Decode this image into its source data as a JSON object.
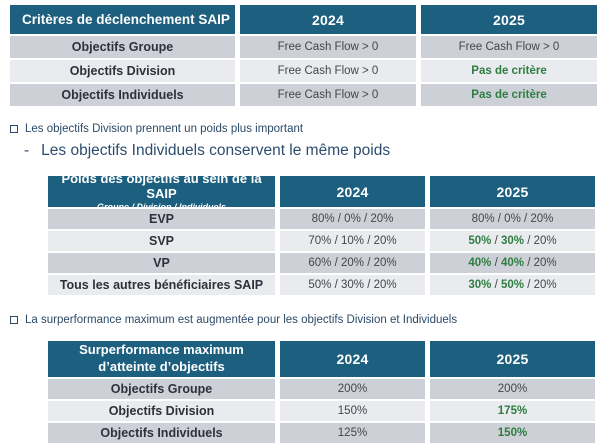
{
  "colors": {
    "header_bg": "#1d5f7e",
    "row_dark": "#cdd1d7",
    "row_light": "#e9ebee",
    "highlight_green": "#2e7d41",
    "bullet_navy": "#2c4a68",
    "text_dark": "#45454d"
  },
  "bullets": {
    "items": [
      {
        "marker": "square",
        "text": "Les objectifs Division prennent un poids plus important"
      },
      {
        "marker": "-",
        "text": "Les objectifs Individuels conservent le même poids"
      },
      {
        "marker": "square",
        "text": "La surperformance maximum est augmentée pour les objectifs Division et Individuels"
      }
    ]
  },
  "tables": {
    "triggers": {
      "title": "Critères de déclenchement SAIP",
      "subtitle": "",
      "years": [
        "2024",
        "2025"
      ],
      "rows": [
        {
          "label": "Objectifs Groupe",
          "cells": [
            [
              "Free Cash Flow > 0"
            ],
            [
              "Free Cash Flow > 0"
            ]
          ]
        },
        {
          "label": "Objectifs Division",
          "cells": [
            [
              "Free Cash Flow > 0"
            ],
            [
              {
                "t": "Pas de critère",
                "g": true
              }
            ]
          ]
        },
        {
          "label": "Objectifs Individuels",
          "cells": [
            [
              "Free Cash Flow > 0"
            ],
            [
              {
                "t": "Pas de critère",
                "g": true
              }
            ]
          ]
        }
      ]
    },
    "weights": {
      "title": "Poids des objectifs au sein de la SAIP",
      "subtitle": "Groupe / Division / Individuels",
      "years": [
        "2024",
        "2025"
      ],
      "rows": [
        {
          "label": "EVP",
          "cells": [
            [
              "80% / 0% / 20%"
            ],
            [
              "80% / 0% / 20%"
            ]
          ]
        },
        {
          "label": "SVP",
          "cells": [
            [
              "70% / 10% / 20%"
            ],
            [
              {
                "t": "50%",
                "g": true
              },
              {
                "t": " / "
              },
              {
                "t": "30%",
                "g": true
              },
              {
                "t": " / 20%"
              }
            ]
          ]
        },
        {
          "label": "VP",
          "cells": [
            [
              "60% / 20% / 20%"
            ],
            [
              {
                "t": "40%",
                "g": true
              },
              {
                "t": " / "
              },
              {
                "t": "40%",
                "g": true
              },
              {
                "t": " / 20%"
              }
            ]
          ]
        },
        {
          "label": "Tous les autres bénéficiaires SAIP",
          "cells": [
            [
              "50% / 30% / 20%"
            ],
            [
              {
                "t": "30%",
                "g": true
              },
              {
                "t": " / "
              },
              {
                "t": "50%",
                "g": true
              },
              {
                "t": " / 20%"
              }
            ]
          ]
        }
      ]
    },
    "surperformance": {
      "title": "Surperformance maximum d’atteinte d’objectifs",
      "subtitle": "",
      "years": [
        "2024",
        "2025"
      ],
      "rows": [
        {
          "label": "Objectifs Groupe",
          "cells": [
            [
              "200%"
            ],
            [
              "200%"
            ]
          ]
        },
        {
          "label": "Objectifs Division",
          "cells": [
            [
              "150%"
            ],
            [
              {
                "t": "175%",
                "g": true
              }
            ]
          ]
        },
        {
          "label": "Objectifs Individuels",
          "cells": [
            [
              "125%"
            ],
            [
              {
                "t": "150%",
                "g": true
              }
            ]
          ]
        }
      ]
    }
  }
}
